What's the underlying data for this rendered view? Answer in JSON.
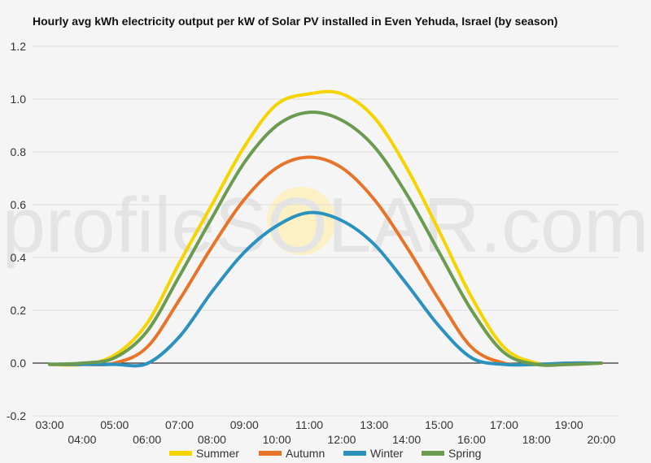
{
  "chart_data": {
    "type": "line",
    "title": "Hourly avg kWh electricity output per kW of Solar PV installed in Even Yehuda, Israel (by season)",
    "xlabel": "",
    "ylabel": "",
    "ylim": [
      -0.2,
      1.2
    ],
    "y_ticks": [
      "-0.2",
      "0.0",
      "0.2",
      "0.4",
      "0.6",
      "0.8",
      "1.0",
      "1.2"
    ],
    "x_ticks": [
      "03:00",
      "04:00",
      "05:00",
      "06:00",
      "07:00",
      "08:00",
      "09:00",
      "10:00",
      "11:00",
      "12:00",
      "13:00",
      "14:00",
      "15:00",
      "16:00",
      "17:00",
      "18:00",
      "19:00",
      "20:00"
    ],
    "grid": true,
    "legend_position": "bottom",
    "watermark": "profileSOLAR.com",
    "series": [
      {
        "name": "Summer",
        "color": "#f5d400",
        "values": [
          -0.005,
          -0.005,
          0.03,
          0.15,
          0.38,
          0.6,
          0.82,
          0.98,
          1.02,
          1.02,
          0.93,
          0.74,
          0.5,
          0.25,
          0.06,
          0.0,
          -0.005,
          0.0
        ]
      },
      {
        "name": "Autumn",
        "color": "#e8742a",
        "values": [
          -0.005,
          -0.005,
          0.0,
          0.06,
          0.24,
          0.44,
          0.62,
          0.74,
          0.78,
          0.74,
          0.62,
          0.44,
          0.24,
          0.06,
          0.0,
          -0.005,
          0.0,
          0.0
        ]
      },
      {
        "name": "Winter",
        "color": "#2b91bf",
        "values": [
          -0.005,
          -0.005,
          -0.005,
          -0.002,
          0.1,
          0.27,
          0.42,
          0.52,
          0.57,
          0.54,
          0.45,
          0.3,
          0.14,
          0.02,
          -0.005,
          -0.005,
          0.0,
          0.0
        ]
      },
      {
        "name": "Spring",
        "color": "#6b9b50",
        "values": [
          -0.005,
          0.0,
          0.02,
          0.12,
          0.33,
          0.55,
          0.76,
          0.9,
          0.95,
          0.92,
          0.82,
          0.64,
          0.42,
          0.2,
          0.04,
          -0.005,
          -0.005,
          0.0
        ]
      }
    ]
  }
}
